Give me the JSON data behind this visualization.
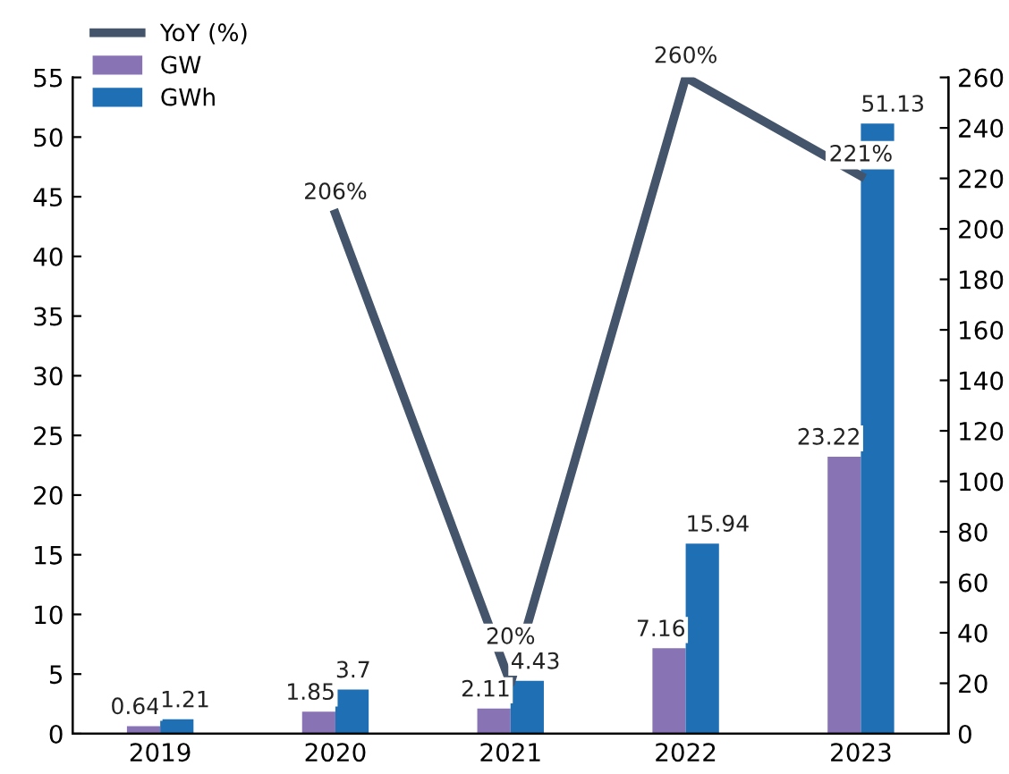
{
  "chart_data": {
    "type": "bar",
    "categories": [
      "2019",
      "2020",
      "2021",
      "2022",
      "2023"
    ],
    "series": [
      {
        "name": "GW",
        "color": "#8874b4",
        "values": [
          0.64,
          1.85,
          2.11,
          7.16,
          23.22
        ],
        "value_labels": [
          "0.64",
          "1.85",
          "2.11",
          "7.16",
          "23.22"
        ]
      },
      {
        "name": "GWh",
        "color": "#1f6fb5",
        "values": [
          1.21,
          3.7,
          4.43,
          15.94,
          51.13
        ],
        "value_labels": [
          "1.21",
          "3.7",
          "4.43",
          "15.94",
          "51.13"
        ]
      },
      {
        "name": "YoY (%)",
        "type": "line",
        "axis": "y2",
        "color": "#44546a",
        "values": [
          null,
          206,
          20,
          260,
          221
        ],
        "value_labels": [
          null,
          "206%",
          "20%",
          "260%",
          "221%"
        ]
      }
    ],
    "ylim": [
      0,
      55
    ],
    "yticks": [
      0,
      5,
      10,
      15,
      20,
      25,
      30,
      35,
      40,
      45,
      50,
      55
    ],
    "y2lim": [
      0,
      260
    ],
    "y2ticks": [
      0,
      20,
      40,
      60,
      80,
      100,
      120,
      140,
      160,
      180,
      200,
      220,
      240,
      260
    ],
    "grid": false,
    "legend": "top left",
    "marker": "none"
  }
}
